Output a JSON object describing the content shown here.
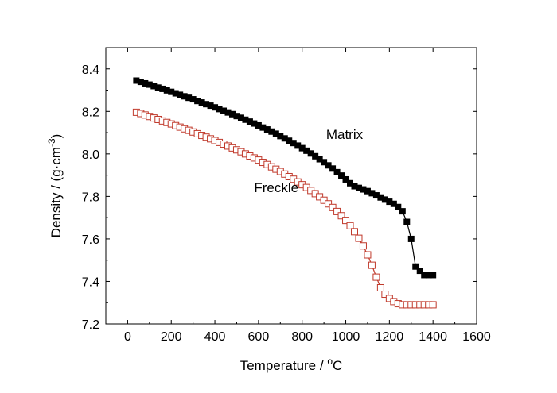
{
  "chart_data": {
    "type": "scatter",
    "title": "",
    "xlabel": "Temperature / ",
    "xlabel_unit_sup": "o",
    "xlabel_unit": "C",
    "ylabel": "Density / (g·cm",
    "ylabel_sup": "-3",
    "ylabel_close": ")",
    "xlim": [
      -100,
      1600
    ],
    "ylim": [
      7.2,
      8.5
    ],
    "xticks": [
      "0",
      "200",
      "400",
      "600",
      "800",
      "1000",
      "1200",
      "1400",
      "1600"
    ],
    "yticks": [
      "7.2",
      "7.4",
      "7.6",
      "7.8",
      "8.0",
      "8.2",
      "8.4"
    ],
    "grid": false,
    "series": [
      {
        "name": "Matrix",
        "marker": "filled-square",
        "color": "#000000",
        "line_color": "#000000",
        "label_position": {
          "x": 910,
          "y": 8.07
        },
        "x": [
          40,
          60,
          80,
          100,
          120,
          140,
          160,
          180,
          200,
          220,
          240,
          260,
          280,
          300,
          320,
          340,
          360,
          380,
          400,
          420,
          440,
          460,
          480,
          500,
          520,
          540,
          560,
          580,
          600,
          620,
          640,
          660,
          680,
          700,
          720,
          740,
          760,
          780,
          800,
          820,
          840,
          860,
          880,
          900,
          920,
          940,
          960,
          980,
          1000,
          1020,
          1040,
          1060,
          1080,
          1100,
          1120,
          1140,
          1160,
          1180,
          1200,
          1220,
          1240,
          1260,
          1280,
          1300,
          1320,
          1340,
          1360,
          1380,
          1400
        ],
        "y": [
          8.345,
          8.339,
          8.332,
          8.326,
          8.319,
          8.312,
          8.306,
          8.299,
          8.292,
          8.285,
          8.278,
          8.271,
          8.264,
          8.257,
          8.249,
          8.242,
          8.234,
          8.227,
          8.219,
          8.211,
          8.203,
          8.195,
          8.187,
          8.178,
          8.17,
          8.161,
          8.152,
          8.143,
          8.134,
          8.124,
          8.115,
          8.105,
          8.095,
          8.084,
          8.073,
          8.062,
          8.051,
          8.039,
          8.027,
          8.015,
          8.002,
          7.989,
          7.975,
          7.961,
          7.946,
          7.931,
          7.914,
          7.898,
          7.88,
          7.862,
          7.848,
          7.84,
          7.833,
          7.825,
          7.815,
          7.805,
          7.795,
          7.785,
          7.775,
          7.765,
          7.75,
          7.73,
          7.68,
          7.6,
          7.47,
          7.45,
          7.43,
          7.43,
          7.43
        ]
      },
      {
        "name": "Freckle",
        "marker": "open-square",
        "color": "#c0392b",
        "line_color": "#c0392b",
        "label_position": {
          "x": 580,
          "y": 7.82
        },
        "x": [
          40,
          60,
          80,
          100,
          120,
          140,
          160,
          180,
          200,
          220,
          240,
          260,
          280,
          300,
          320,
          340,
          360,
          380,
          400,
          420,
          440,
          460,
          480,
          500,
          520,
          540,
          560,
          580,
          600,
          620,
          640,
          660,
          680,
          700,
          720,
          740,
          760,
          780,
          800,
          820,
          840,
          860,
          880,
          900,
          920,
          940,
          960,
          980,
          1000,
          1020,
          1040,
          1060,
          1080,
          1100,
          1120,
          1140,
          1160,
          1180,
          1200,
          1220,
          1240,
          1260,
          1280,
          1300,
          1320,
          1340,
          1360,
          1380,
          1400
        ],
        "y": [
          8.196,
          8.19,
          8.183,
          8.176,
          8.169,
          8.162,
          8.155,
          8.148,
          8.141,
          8.133,
          8.126,
          8.118,
          8.111,
          8.103,
          8.095,
          8.087,
          8.079,
          8.071,
          8.063,
          8.054,
          8.046,
          8.037,
          8.028,
          8.019,
          8.01,
          8.0,
          7.99,
          7.981,
          7.971,
          7.96,
          7.95,
          7.939,
          7.928,
          7.917,
          7.905,
          7.893,
          7.881,
          7.868,
          7.855,
          7.842,
          7.828,
          7.813,
          7.798,
          7.782,
          7.765,
          7.748,
          7.729,
          7.709,
          7.687,
          7.662,
          7.634,
          7.603,
          7.567,
          7.525,
          7.476,
          7.42,
          7.37,
          7.34,
          7.32,
          7.305,
          7.295,
          7.29,
          7.29,
          7.29,
          7.29,
          7.29,
          7.29,
          7.29,
          7.29
        ]
      }
    ]
  }
}
